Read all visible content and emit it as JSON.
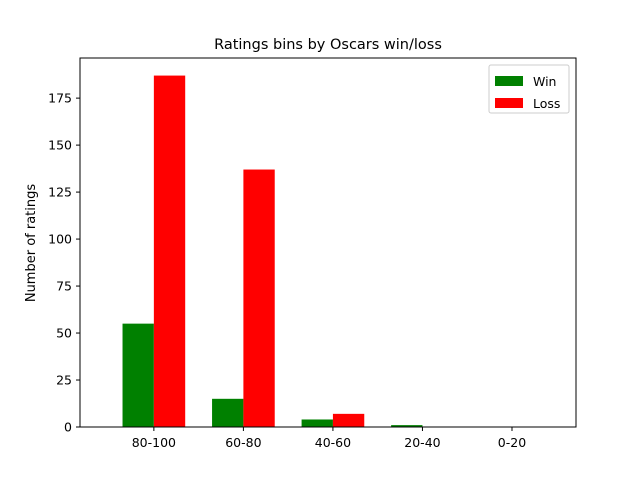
{
  "chart_data": {
    "type": "bar",
    "title": "Ratings bins by Oscars win/loss",
    "xlabel": "",
    "ylabel": "Number of ratings",
    "categories": [
      "80-100",
      "60-80",
      "40-60",
      "20-40",
      "0-20"
    ],
    "series": [
      {
        "name": "Win",
        "values": [
          55,
          15,
          4,
          1,
          0
        ],
        "color": "#008000"
      },
      {
        "name": "Loss",
        "values": [
          187,
          137,
          7,
          0,
          0
        ],
        "color": "#ff0000"
      }
    ],
    "ylim": [
      0,
      196.35
    ],
    "yticks": [
      0,
      25,
      50,
      75,
      100,
      125,
      150,
      175
    ],
    "grid": false,
    "legend_position": "top-right"
  }
}
